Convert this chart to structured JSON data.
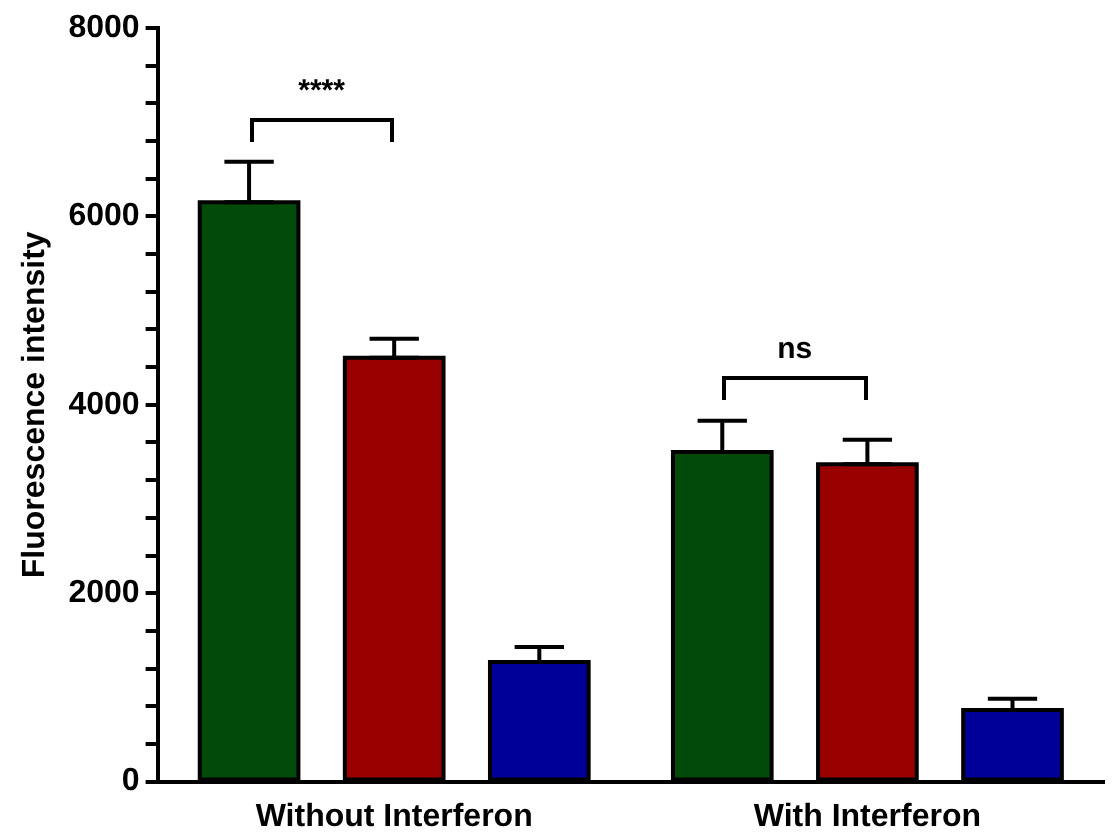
{
  "chart_data": {
    "type": "bar",
    "ylabel": "Fluorescence intensity",
    "categories": [
      "Without Interferon",
      "With Interferon"
    ],
    "series": [
      {
        "color": "#004b0a",
        "values": [
          6150,
          3500
        ],
        "errors": [
          [
            6150,
            6580
          ],
          [
            3500,
            3830
          ]
        ]
      },
      {
        "color": "#990000",
        "values": [
          4500,
          3370
        ],
        "errors": [
          [
            4500,
            4700
          ],
          [
            3370,
            3630
          ]
        ]
      },
      {
        "color": "#000099",
        "values": [
          1270,
          760
        ],
        "errors": [
          [
            1270,
            1430
          ],
          [
            760,
            880
          ]
        ]
      }
    ],
    "ylim": [
      0,
      8000
    ],
    "yticks": [
      0,
      {
        "value": 400,
        "label": null
      },
      {
        "value": 800,
        "label": null
      },
      {
        "value": 1200,
        "label": null
      },
      {
        "value": 1600,
        "label": null
      },
      2000,
      {
        "value": 2400,
        "label": null
      },
      {
        "value": 2800,
        "label": null
      },
      {
        "value": 3200,
        "label": null
      },
      {
        "value": 3600,
        "label": null
      },
      4000,
      {
        "value": 4400,
        "label": null
      },
      {
        "value": 4800,
        "label": null
      },
      {
        "value": 5200,
        "label": null
      },
      {
        "value": 5600,
        "label": null
      },
      6000,
      {
        "value": 6400,
        "label": null
      },
      {
        "value": 6800,
        "label": null
      },
      {
        "value": 7200,
        "label": null
      },
      {
        "value": 7600,
        "label": null
      },
      8000
    ],
    "grid": false,
    "legend": false,
    "annotations": [
      "****",
      "ns"
    ]
  }
}
